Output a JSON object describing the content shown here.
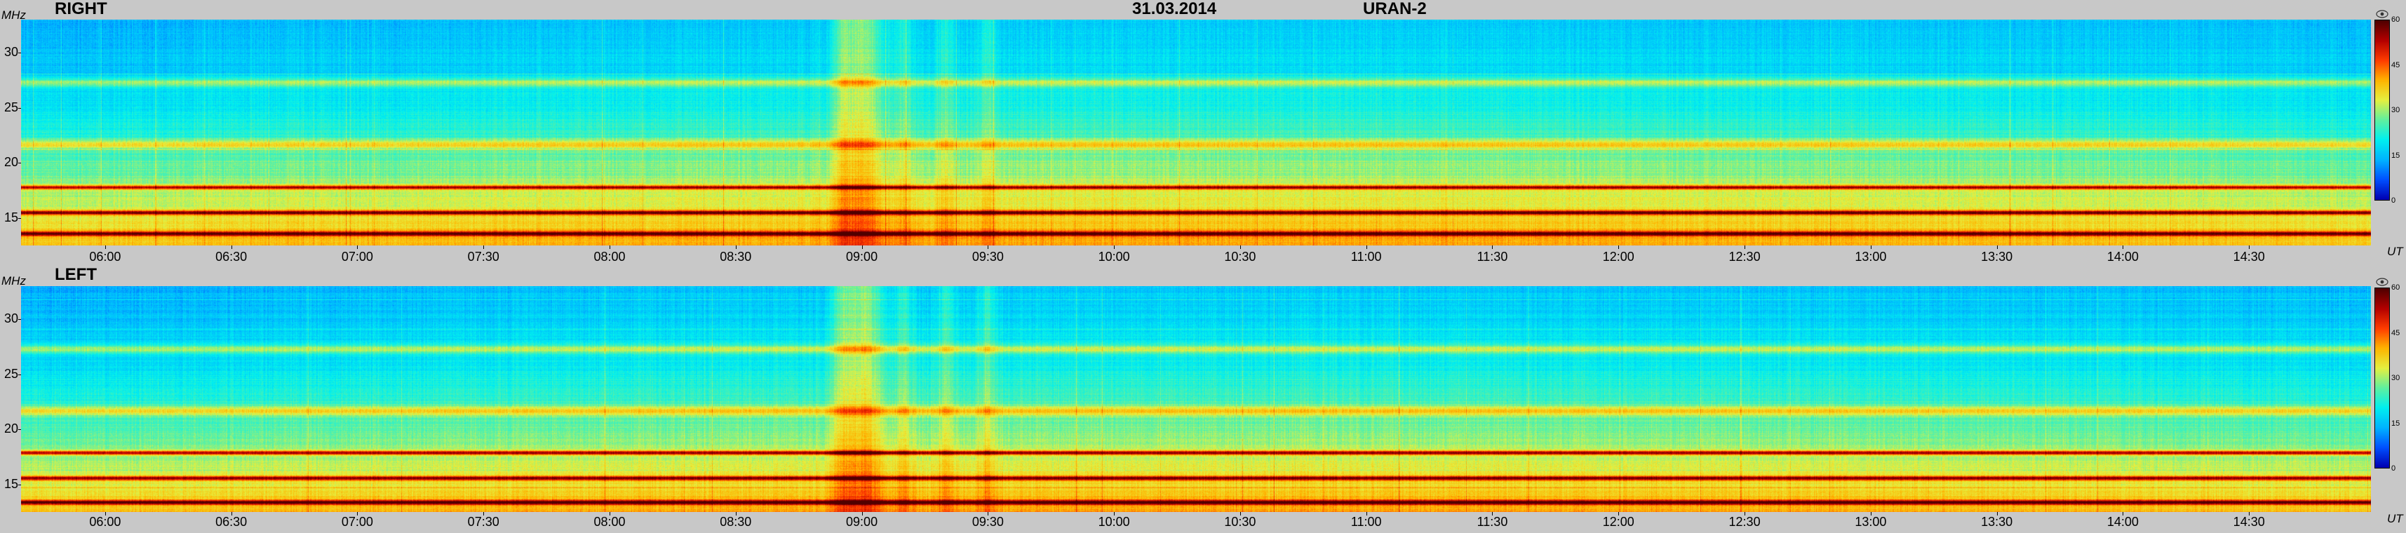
{
  "header": {
    "date": "31.03.2014",
    "instrument": "URAN-2"
  },
  "units": {
    "frequency": "MHz",
    "time": "UT"
  },
  "colorbar_icon": "eye-icon",
  "colors": {
    "background": "#c8c8c8",
    "colormap": [
      "#0000b4",
      "#0050ff",
      "#00b4ff",
      "#00f0f0",
      "#60f0a0",
      "#e6f040",
      "#ffb400",
      "#ff3c00",
      "#b40000",
      "#500000"
    ]
  },
  "chart_data": [
    {
      "type": "heatmap",
      "title": "RIGHT",
      "xlabel": "UT",
      "ylabel": "MHz",
      "x_ticks": [
        "06:00",
        "06:30",
        "07:00",
        "07:30",
        "08:00",
        "08:30",
        "09:00",
        "09:30",
        "10:00",
        "10:30",
        "11:00",
        "11:30",
        "12:00",
        "12:30",
        "13:00",
        "13:30",
        "14:00",
        "14:30"
      ],
      "x_range": [
        "05:40",
        "14:59"
      ],
      "y_ticks": [
        15,
        20,
        25,
        30
      ],
      "y_range": [
        12.5,
        33
      ],
      "colorbar": {
        "ticks": [
          0,
          15,
          30,
          45,
          60
        ],
        "range": [
          0,
          60
        ]
      },
      "bright_lanes_mhz": [
        13.6,
        15.5,
        17.8,
        21.7,
        27.3
      ],
      "burst_times": [
        "08:55",
        "09:00",
        "09:10",
        "09:20",
        "09:30"
      ]
    },
    {
      "type": "heatmap",
      "title": "LEFT",
      "xlabel": "UT",
      "ylabel": "MHz",
      "x_ticks": [
        "06:00",
        "06:30",
        "07:00",
        "07:30",
        "08:00",
        "08:30",
        "09:00",
        "09:30",
        "10:00",
        "10:30",
        "11:00",
        "11:30",
        "12:00",
        "12:30",
        "13:00",
        "13:30",
        "14:00",
        "14:30"
      ],
      "x_range": [
        "05:40",
        "14:59"
      ],
      "y_ticks": [
        15,
        20,
        25,
        30
      ],
      "y_range": [
        12.5,
        33
      ],
      "colorbar": {
        "ticks": [
          0,
          15,
          30,
          45,
          60
        ],
        "range": [
          0,
          60
        ]
      },
      "bright_lanes_mhz": [
        13.4,
        15.6,
        17.9,
        21.7,
        27.3
      ],
      "burst_times": [
        "08:55",
        "09:00",
        "09:10",
        "09:20",
        "09:30"
      ]
    }
  ]
}
